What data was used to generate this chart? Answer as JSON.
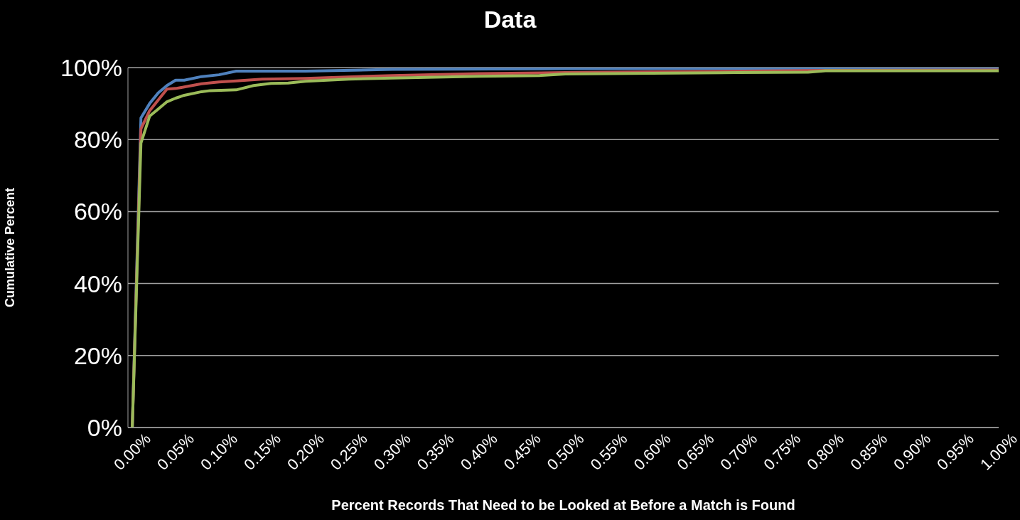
{
  "chart_data": {
    "type": "line",
    "title": "Data",
    "xlabel": "Percent Records That Need to be Looked at Before a Match is Found",
    "ylabel": "Cumulative Percent",
    "xlim": [
      -0.005,
      1
    ],
    "xticks": [
      {
        "value": 0,
        "label": "0.00%"
      },
      {
        "value": 0.05,
        "label": "0.05%"
      },
      {
        "value": 0.1,
        "label": "0.10%"
      },
      {
        "value": 0.15,
        "label": "0.15%"
      },
      {
        "value": 0.2,
        "label": "0.20%"
      },
      {
        "value": 0.25,
        "label": "0.25%"
      },
      {
        "value": 0.3,
        "label": "0.30%"
      },
      {
        "value": 0.35,
        "label": "0.35%"
      },
      {
        "value": 0.4,
        "label": "0.40%"
      },
      {
        "value": 0.45,
        "label": "0.45%"
      },
      {
        "value": 0.5,
        "label": "0.50%"
      },
      {
        "value": 0.55,
        "label": "0.55%"
      },
      {
        "value": 0.6,
        "label": "0.60%"
      },
      {
        "value": 0.65,
        "label": "0.65%"
      },
      {
        "value": 0.7,
        "label": "0.70%"
      },
      {
        "value": 0.75,
        "label": "0.75%"
      },
      {
        "value": 0.8,
        "label": "0.80%"
      },
      {
        "value": 0.85,
        "label": "0.85%"
      },
      {
        "value": 0.9,
        "label": "0.90%"
      },
      {
        "value": 0.95,
        "label": "0.95%"
      },
      {
        "value": 1,
        "label": "1.00%"
      }
    ],
    "ylim": [
      0,
      100
    ],
    "yticks": [
      {
        "value": 0,
        "label": "0%"
      },
      {
        "value": 20,
        "label": "20%"
      },
      {
        "value": 40,
        "label": "40%"
      },
      {
        "value": 60,
        "label": "60%"
      },
      {
        "value": 80,
        "label": "80%"
      },
      {
        "value": 100,
        "label": "100%"
      }
    ],
    "grid": "y",
    "marker": "none",
    "line_style": "solid",
    "series": [
      {
        "color": "#4f81bd",
        "x": [
          0,
          0.01,
          0.02,
          0.03,
          0.04,
          0.05,
          0.06,
          0.08,
          0.1,
          0.12,
          0.2,
          0.3,
          0.5,
          1
        ],
        "values": [
          0,
          86,
          90,
          93,
          95,
          96.5,
          96.5,
          97.5,
          98,
          99,
          99,
          99.5,
          99.7,
          99.8
        ]
      },
      {
        "color": "#c0504d",
        "x": [
          0,
          0.01,
          0.02,
          0.03,
          0.04,
          0.05,
          0.06,
          0.08,
          0.1,
          0.12,
          0.15,
          0.2,
          0.3,
          0.4,
          0.5,
          0.6,
          0.8,
          1
        ],
        "values": [
          0,
          83,
          88,
          91,
          94,
          94.2,
          94.6,
          95.5,
          96,
          96.3,
          96.8,
          97,
          97.8,
          98.3,
          98.6,
          98.8,
          99.2,
          99.3
        ]
      },
      {
        "color": "#9bbb59",
        "x": [
          0,
          0.01,
          0.02,
          0.03,
          0.04,
          0.05,
          0.06,
          0.08,
          0.09,
          0.12,
          0.14,
          0.16,
          0.18,
          0.2,
          0.25,
          0.3,
          0.4,
          0.47,
          0.5,
          0.6,
          0.7,
          0.78,
          0.8,
          1
        ],
        "values": [
          0,
          79,
          86.5,
          88.5,
          90.5,
          91.5,
          92.3,
          93.3,
          93.6,
          93.8,
          95,
          95.6,
          95.7,
          96.2,
          96.8,
          97.1,
          97.6,
          97.8,
          98.2,
          98.4,
          98.6,
          98.7,
          99.1,
          99.1
        ]
      }
    ]
  }
}
